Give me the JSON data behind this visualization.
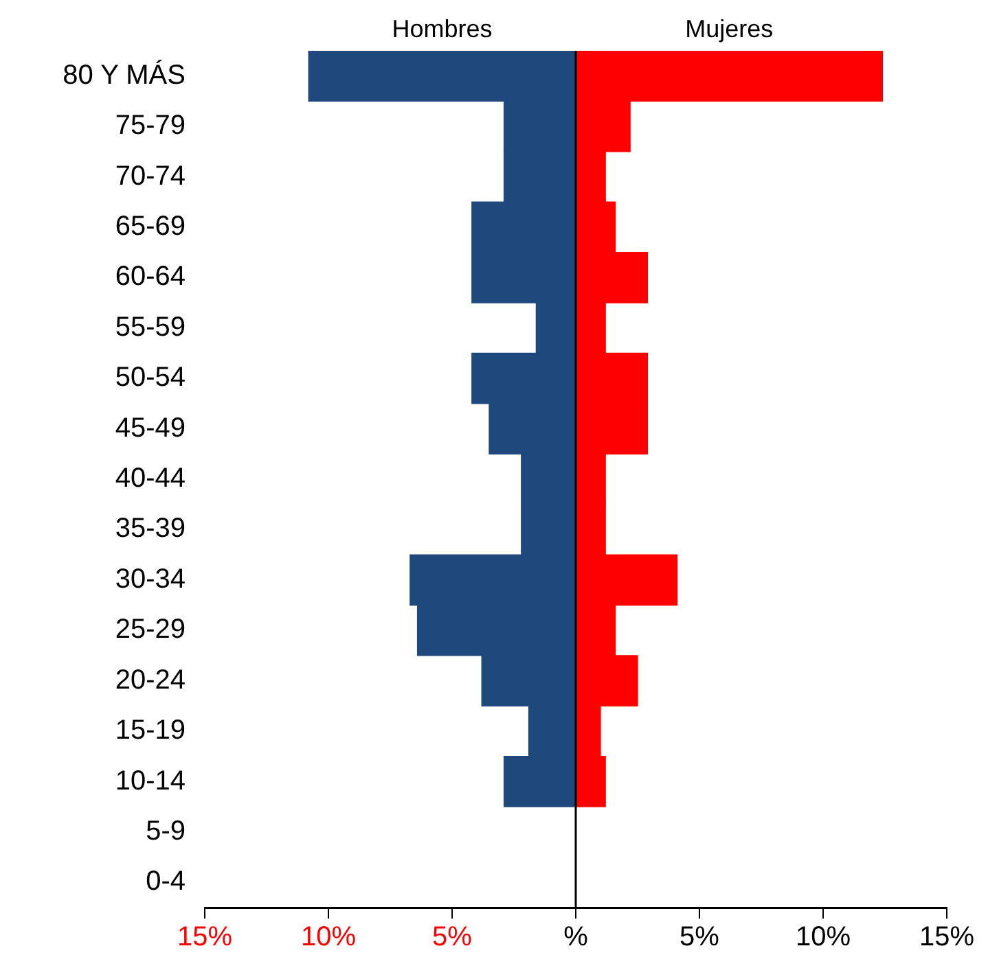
{
  "chart_data": {
    "type": "bar",
    "orientation": "horizontal",
    "stacked": true,
    "categories": [
      "80 Y MÁS",
      "75-79",
      "70-74",
      "65-69",
      "60-64",
      "55-59",
      "50-54",
      "45-49",
      "40-44",
      "35-39",
      "30-34",
      "25-29",
      "20-24",
      "15-19",
      "10-14",
      "5-9",
      "0-4"
    ],
    "series": [
      {
        "name": "Hombres",
        "color": "#1f497d",
        "values": [
          -10.8,
          -2.9,
          -2.9,
          -4.2,
          -4.2,
          -1.6,
          -4.2,
          -3.5,
          -2.2,
          -2.2,
          -6.7,
          -6.4,
          -3.8,
          -1.9,
          -2.9,
          0,
          0
        ]
      },
      {
        "name": "Mujeres",
        "color": "#ff0000",
        "values": [
          12.4,
          2.2,
          1.2,
          1.6,
          2.9,
          1.2,
          2.9,
          2.9,
          1.2,
          1.2,
          4.1,
          1.6,
          2.5,
          1.0,
          1.2,
          0,
          0
        ]
      }
    ],
    "xlim": [
      -15,
      15
    ],
    "xticks": [
      {
        "value": -15,
        "label": "15%"
      },
      {
        "value": -10,
        "label": "10%"
      },
      {
        "value": -5,
        "label": "5%"
      },
      {
        "value": 0,
        "label": "%"
      },
      {
        "value": 5,
        "label": "5%"
      },
      {
        "value": 10,
        "label": "10%"
      },
      {
        "value": 15,
        "label": "15%"
      }
    ],
    "ref_lines": [
      {
        "axis": "x",
        "value": 0,
        "color": "#000000"
      }
    ],
    "grid": false
  }
}
